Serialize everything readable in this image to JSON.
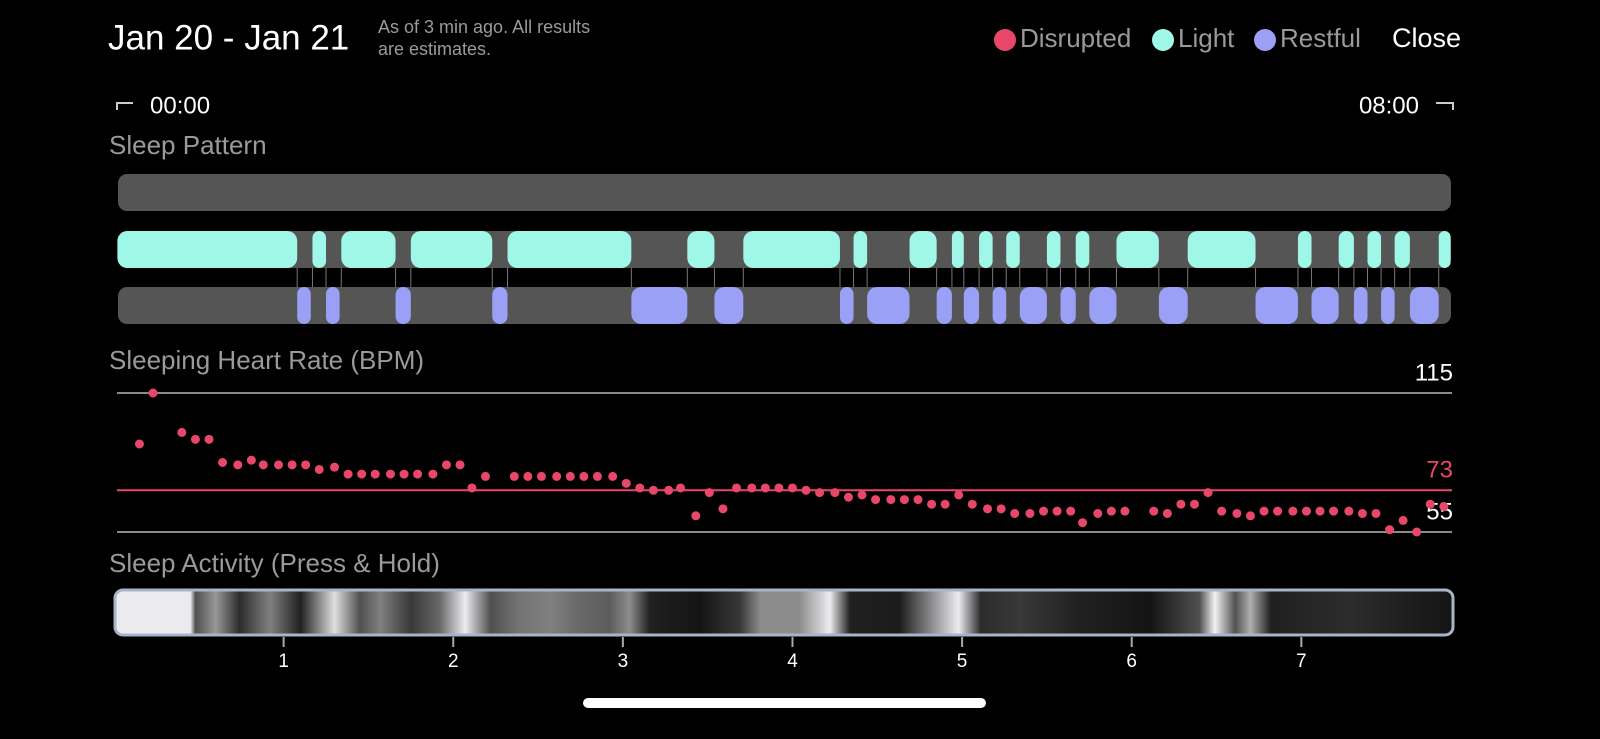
{
  "header": {
    "title": "Jan 20 - Jan 21",
    "subtitle": [
      "As of 3 min ago. All results",
      "are estimates."
    ],
    "close": "Close"
  },
  "legend": [
    {
      "name": "Disrupted",
      "color": "#e8476a"
    },
    {
      "name": "Light",
      "color": "#9ff7e8"
    },
    {
      "name": "Restful",
      "color": "#9aa0f5"
    }
  ],
  "range": {
    "start": "00:00",
    "end": "08:00"
  },
  "xlim": [
    0,
    7.9
  ],
  "xticks": [
    1,
    2,
    3,
    4,
    5,
    6,
    7
  ],
  "sleep_pattern": {
    "title": "Sleep Pattern",
    "disrupted": [],
    "light": [
      [
        0.02,
        1.08
      ],
      [
        1.17,
        1.25
      ],
      [
        1.34,
        1.66
      ],
      [
        1.75,
        2.23
      ],
      [
        2.32,
        3.05
      ],
      [
        3.38,
        3.54
      ],
      [
        3.71,
        4.28
      ],
      [
        4.36,
        4.44
      ],
      [
        4.69,
        4.85
      ],
      [
        4.94,
        5.01
      ],
      [
        5.1,
        5.18
      ],
      [
        5.26,
        5.34
      ],
      [
        5.5,
        5.58
      ],
      [
        5.67,
        5.75
      ],
      [
        5.91,
        6.16
      ],
      [
        6.33,
        6.73
      ],
      [
        6.98,
        7.06
      ],
      [
        7.22,
        7.31
      ],
      [
        7.39,
        7.47
      ],
      [
        7.55,
        7.64
      ],
      [
        7.81,
        7.88
      ]
    ],
    "restful": [
      [
        1.08,
        1.16
      ],
      [
        1.25,
        1.33
      ],
      [
        1.66,
        1.75
      ],
      [
        2.23,
        2.32
      ],
      [
        3.05,
        3.38
      ],
      [
        3.54,
        3.71
      ],
      [
        4.28,
        4.36
      ],
      [
        4.44,
        4.69
      ],
      [
        4.85,
        4.94
      ],
      [
        5.01,
        5.1
      ],
      [
        5.18,
        5.26
      ],
      [
        5.34,
        5.5
      ],
      [
        5.58,
        5.67
      ],
      [
        5.75,
        5.91
      ],
      [
        6.16,
        6.33
      ],
      [
        6.73,
        6.98
      ],
      [
        7.06,
        7.22
      ],
      [
        7.31,
        7.39
      ],
      [
        7.47,
        7.55
      ],
      [
        7.64,
        7.81
      ]
    ]
  },
  "heart_rate": {
    "title": "Sleeping Heart Rate (BPM)",
    "ylim": [
      55,
      115
    ],
    "yticks": [
      55,
      115
    ],
    "average": 73,
    "color": "#e8476a",
    "x": [
      0.15,
      0.23,
      0.4,
      0.48,
      0.56,
      0.64,
      0.73,
      0.81,
      0.88,
      0.97,
      1.05,
      1.13,
      1.21,
      1.3,
      1.38,
      1.46,
      1.54,
      1.63,
      1.71,
      1.79,
      1.88,
      1.96,
      2.04,
      2.11,
      2.19,
      2.36,
      2.44,
      2.52,
      2.61,
      2.69,
      2.77,
      2.85,
      2.94,
      3.02,
      3.1,
      3.18,
      3.27,
      3.34,
      3.43,
      3.51,
      3.59,
      3.67,
      3.76,
      3.84,
      3.92,
      4.0,
      4.08,
      4.16,
      4.25,
      4.33,
      4.41,
      4.49,
      4.58,
      4.66,
      4.74,
      4.82,
      4.9,
      4.98,
      5.06,
      5.15,
      5.23,
      5.31,
      5.4,
      5.48,
      5.56,
      5.64,
      5.71,
      5.8,
      5.88,
      5.96,
      6.13,
      6.21,
      6.29,
      6.37,
      6.45,
      6.53,
      6.62,
      6.7,
      6.78,
      6.86,
      6.95,
      7.03,
      7.11,
      7.19,
      7.28,
      7.36,
      7.44,
      7.52,
      7.6,
      7.68,
      7.76,
      7.84
    ],
    "values": [
      93,
      115,
      98,
      95,
      95,
      85,
      84,
      86,
      84,
      84,
      84,
      84,
      82,
      83,
      80,
      80,
      80,
      80,
      80,
      80,
      80,
      84,
      84,
      74,
      79,
      79,
      79,
      79,
      79,
      79,
      79,
      79,
      79,
      76,
      74,
      73,
      73,
      74,
      62,
      72,
      65,
      74,
      74,
      74,
      74,
      74,
      73,
      72,
      72,
      70,
      71,
      69,
      69,
      69,
      69,
      67,
      67,
      71,
      67,
      65,
      65,
      63,
      63,
      64,
      64,
      64,
      59,
      63,
      64,
      64,
      64,
      63,
      67,
      67,
      72,
      64,
      63,
      62,
      64,
      64,
      64,
      64,
      64,
      64,
      64,
      63,
      63,
      56,
      60,
      55,
      67,
      66
    ]
  },
  "activity": {
    "title": "Sleep Activity (Press & Hold)",
    "x": [
      0.01,
      0.45,
      0.48,
      0.6,
      0.74,
      0.92,
      1.1,
      1.3,
      1.45,
      1.57,
      1.75,
      1.92,
      2.07,
      2.22,
      2.39,
      2.57,
      2.75,
      2.92,
      3.04,
      3.16,
      3.45,
      3.69,
      3.81,
      4.04,
      4.22,
      4.34,
      4.63,
      4.98,
      5.11,
      5.34,
      5.7,
      6.11,
      6.4,
      6.49,
      6.61,
      6.7,
      6.82,
      7.29,
      7.58,
      7.9
    ],
    "levels": [
      0.95,
      0.95,
      0.3,
      0.6,
      0.15,
      0.5,
      0.1,
      0.9,
      0.3,
      0.5,
      0.2,
      0.4,
      0.95,
      0.3,
      0.45,
      0.5,
      0.4,
      0.35,
      0.55,
      0.1,
      0.05,
      0.2,
      0.55,
      0.55,
      0.95,
      0.1,
      0.08,
      0.95,
      0.15,
      0.2,
      0.1,
      0.05,
      0.3,
      0.98,
      0.3,
      0.7,
      0.1,
      0.15,
      0.1,
      0.05
    ]
  }
}
